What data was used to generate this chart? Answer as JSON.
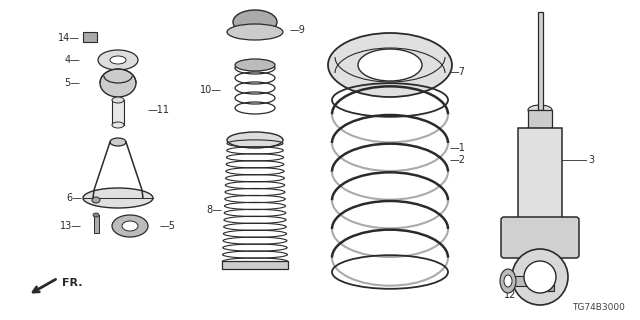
{
  "bg_color": "#ffffff",
  "line_color": "#2a2a2a",
  "diagram_code": "TG74B3000",
  "figsize": [
    6.4,
    3.2
  ],
  "dpi": 100
}
